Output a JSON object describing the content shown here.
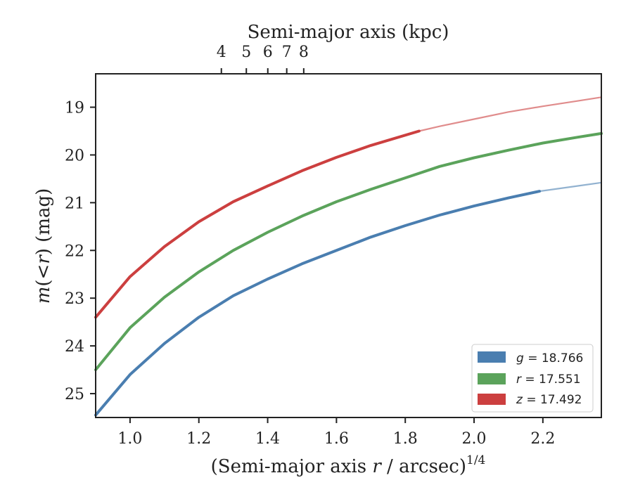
{
  "chart_data": {
    "type": "line",
    "x_axis": {
      "label_main": "(Semi-major axis ",
      "label_var": "r",
      "label_rest": " / arcsec)",
      "label_sup": "1/4",
      "ticks": [
        "1.0",
        "1.2",
        "1.4",
        "1.6",
        "1.8",
        "2.0",
        "2.2"
      ],
      "tick_values": [
        1.0,
        1.2,
        1.4,
        1.6,
        1.8,
        2.0,
        2.2
      ],
      "lim": [
        0.9,
        2.37
      ]
    },
    "top_axis": {
      "label": "Semi-major axis (kpc)",
      "ticks": [
        "4",
        "5",
        "6",
        "7",
        "8"
      ],
      "tick_values": [
        4,
        5,
        6,
        7,
        8
      ],
      "kpc_per_arcsec": 1.56
    },
    "y_axis": {
      "label_m": "m",
      "label_paren": "(<",
      "label_r": "r",
      "label_rest": ") (mag)",
      "ticks": [
        "19",
        "20",
        "21",
        "22",
        "23",
        "24",
        "25"
      ],
      "tick_values": [
        19,
        20,
        21,
        22,
        23,
        24,
        25
      ],
      "lim": [
        25.5,
        18.3
      ],
      "inverted": true
    },
    "series": [
      {
        "name": "g",
        "legend_label": "g = 18.766",
        "color": "#4a7eb0",
        "x": [
          0.9,
          1.0,
          1.1,
          1.2,
          1.3,
          1.4,
          1.5,
          1.6,
          1.7,
          1.8,
          1.9,
          2.0,
          2.1,
          2.19,
          2.3,
          2.37
        ],
        "y": [
          25.45,
          24.6,
          23.95,
          23.4,
          22.95,
          22.6,
          22.28,
          22.0,
          21.72,
          21.48,
          21.26,
          21.07,
          20.9,
          20.76,
          20.65,
          20.58
        ],
        "solid_until": 2.19
      },
      {
        "name": "r",
        "legend_label": "r = 17.551",
        "color": "#5ba35b",
        "x": [
          0.9,
          1.0,
          1.1,
          1.2,
          1.3,
          1.4,
          1.5,
          1.6,
          1.7,
          1.8,
          1.9,
          2.0,
          2.1,
          2.2,
          2.3,
          2.37
        ],
        "y": [
          24.5,
          23.62,
          22.98,
          22.45,
          22.0,
          21.62,
          21.28,
          20.98,
          20.72,
          20.48,
          20.24,
          20.06,
          19.9,
          19.75,
          19.63,
          19.55
        ],
        "solid_until": 2.37
      },
      {
        "name": "z",
        "legend_label": "z = 17.492",
        "color": "#cc3f3f",
        "x": [
          0.9,
          1.0,
          1.1,
          1.2,
          1.3,
          1.4,
          1.5,
          1.6,
          1.7,
          1.84,
          1.9,
          2.0,
          2.1,
          2.2,
          2.3,
          2.37
        ],
        "y": [
          23.4,
          22.55,
          21.92,
          21.4,
          20.98,
          20.65,
          20.33,
          20.05,
          19.8,
          19.5,
          19.4,
          19.25,
          19.1,
          18.98,
          18.87,
          18.79
        ],
        "solid_until": 1.84
      }
    ],
    "legend": {
      "position": "lower right",
      "entries": [
        {
          "var": "g",
          "text": " = 18.766"
        },
        {
          "var": "r",
          "text": " = 17.551"
        },
        {
          "var": "z",
          "text": " = 17.492"
        }
      ]
    },
    "grid": false
  }
}
